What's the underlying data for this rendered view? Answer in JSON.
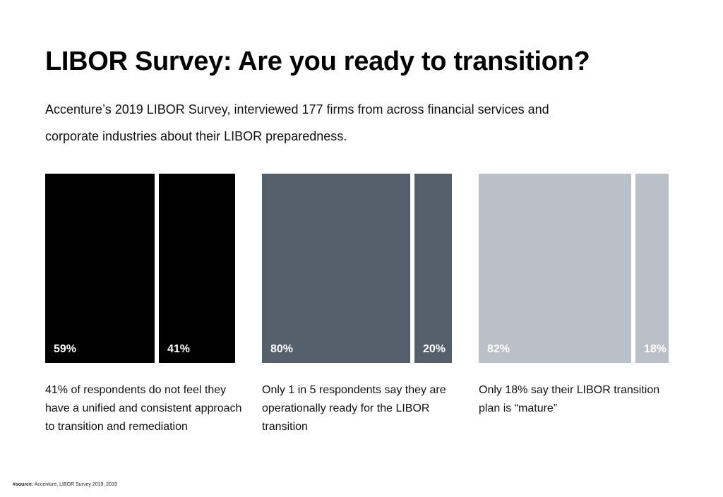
{
  "title": "LIBOR Survey: Are you ready to transition?",
  "subtitle": "Accenture’s 2019 LIBOR Survey, interviewed 177 firms from across financial services and corporate industries about their LIBOR preparedness.",
  "source": {
    "label": "#source:",
    "text": " Accenture, LIBOR Survey 2019, 2019"
  },
  "chart_data": [
    {
      "type": "bar",
      "color": "#000000",
      "values": [
        59,
        41
      ],
      "labels": [
        "59%",
        "41%"
      ],
      "caption": "41% of respondents do not feel they have a unified and consistent approach to transition and remediation"
    },
    {
      "type": "bar",
      "color": "#565f6c",
      "values": [
        80,
        20
      ],
      "labels": [
        "80%",
        "20%"
      ],
      "caption": "Only 1 in 5 respondents say they are operationally ready for the LIBOR transition"
    },
    {
      "type": "bar",
      "color": "#bbbfc7",
      "values": [
        82,
        18
      ],
      "labels": [
        "82%",
        "18%"
      ],
      "caption": "Only 18% say their LIBOR transition plan is “mature”"
    }
  ]
}
